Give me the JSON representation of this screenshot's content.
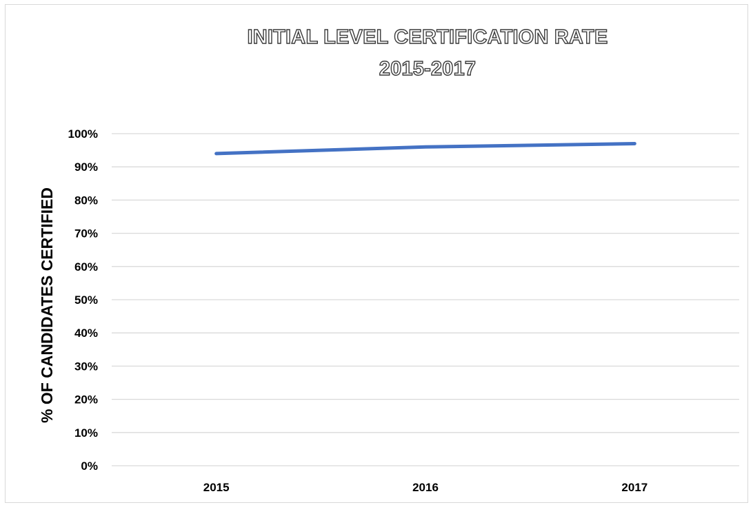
{
  "chart_data": {
    "type": "line",
    "title": "INITIAL LEVEL CERTIFICATION RATE",
    "subtitle": "2015-2017",
    "xlabel": "",
    "ylabel": "% OF CANDIDATES CERTIFIED",
    "categories": [
      "2015",
      "2016",
      "2017"
    ],
    "series": [
      {
        "values": [
          94,
          96,
          97
        ],
        "color": "#4472c4"
      }
    ],
    "ylim": [
      0,
      100
    ],
    "yticks": [
      "0%",
      "10%",
      "20%",
      "30%",
      "40%",
      "50%",
      "60%",
      "70%",
      "80%",
      "90%",
      "100%"
    ],
    "grid": true,
    "gridColor": "#d9d9d9",
    "legend": "none"
  }
}
